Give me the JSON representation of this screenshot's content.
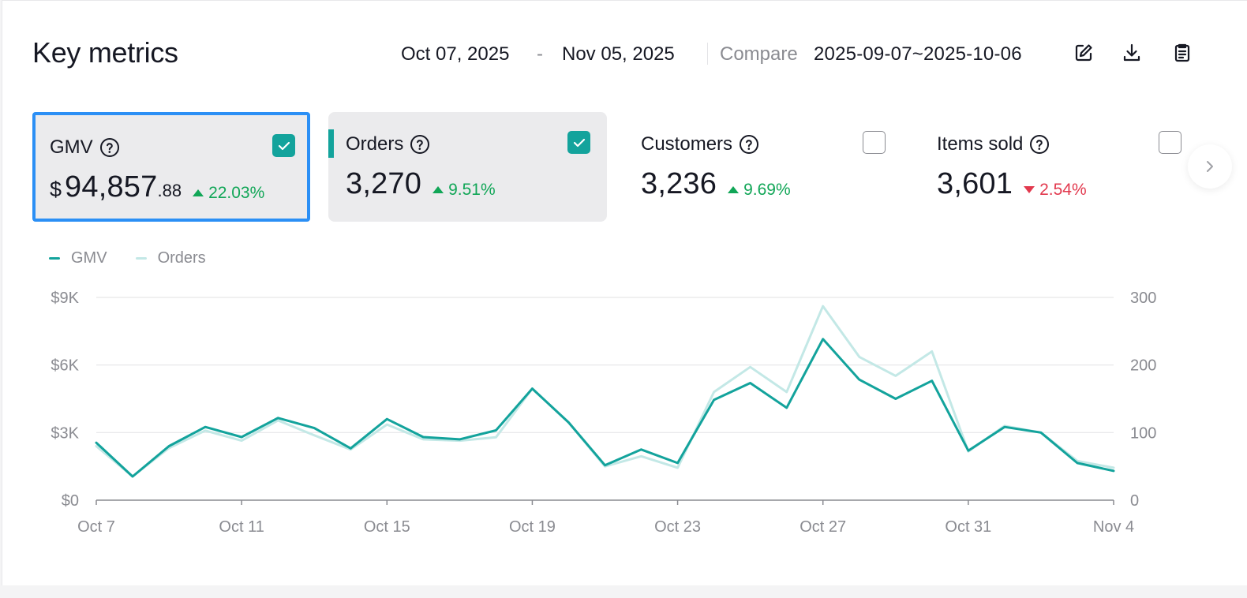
{
  "header": {
    "title": "Key metrics",
    "date_start": "Oct 07, 2025",
    "date_sep": "-",
    "date_end": "Nov 05, 2025",
    "compare_label": "Compare",
    "compare_value": "2025-09-07~2025-10-06",
    "tools": [
      "edit-icon",
      "download-icon",
      "clipboard-icon"
    ]
  },
  "cards": [
    {
      "label": "GMV",
      "currency": "$",
      "value_int": "94,857",
      "value_dec": ".88",
      "delta": "22.03%",
      "trend": "up",
      "checked": true,
      "selected": true
    },
    {
      "label": "Orders",
      "value_int": "3,270",
      "delta": "9.51%",
      "trend": "up",
      "checked": true,
      "selected": false
    },
    {
      "label": "Customers",
      "value_int": "3,236",
      "delta": "9.69%",
      "trend": "up",
      "checked": false,
      "selected": false
    },
    {
      "label": "Items sold",
      "value_int": "3,601",
      "delta": "2.54%",
      "trend": "down",
      "checked": false,
      "selected": false
    }
  ],
  "colors": {
    "gmv_line": "#13a39c",
    "orders_line": "#c3e8e6",
    "selected_border": "#2b8ff5",
    "up": "#11a657",
    "down": "#e2394e",
    "grid": "#e6e6e8",
    "axis_text": "#8a8b91"
  },
  "chart_data": {
    "type": "line",
    "legend": [
      "GMV",
      "Orders"
    ],
    "legend_position": "top-left",
    "grid": true,
    "x": [
      "Oct 7",
      "Oct 8",
      "Oct 9",
      "Oct 10",
      "Oct 11",
      "Oct 12",
      "Oct 13",
      "Oct 14",
      "Oct 15",
      "Oct 16",
      "Oct 17",
      "Oct 18",
      "Oct 19",
      "Oct 20",
      "Oct 21",
      "Oct 22",
      "Oct 23",
      "Oct 24",
      "Oct 25",
      "Oct 26",
      "Oct 27",
      "Oct 28",
      "Oct 29",
      "Oct 30",
      "Oct 31",
      "Nov 1",
      "Nov 2",
      "Nov 3",
      "Nov 4"
    ],
    "x_tick_labels": [
      "Oct 7",
      "Oct 11",
      "Oct 15",
      "Oct 19",
      "Oct 23",
      "Oct 27",
      "Oct 31",
      "Nov 4"
    ],
    "y_left": {
      "ticks": [
        "$0",
        "$3K",
        "$6K",
        "$9K"
      ],
      "range": [
        0,
        9000
      ]
    },
    "y_right": {
      "ticks": [
        "0",
        "100",
        "200",
        "300"
      ],
      "range": [
        0,
        300
      ]
    },
    "series": [
      {
        "name": "GMV",
        "axis": "left",
        "values": [
          2550,
          1050,
          2400,
          3250,
          2800,
          3650,
          3200,
          2300,
          3600,
          2800,
          2700,
          3100,
          4950,
          3450,
          1550,
          2250,
          1650,
          4450,
          5200,
          4100,
          7150,
          5350,
          4500,
          5300,
          2200,
          3250,
          3000,
          1650,
          1300
        ]
      },
      {
        "name": "Orders",
        "axis": "right",
        "values": [
          80,
          35,
          77,
          103,
          88,
          118,
          96,
          75,
          112,
          90,
          88,
          93,
          165,
          115,
          50,
          65,
          48,
          160,
          197,
          160,
          287,
          212,
          184,
          220,
          72,
          110,
          100,
          58,
          48
        ]
      }
    ]
  }
}
